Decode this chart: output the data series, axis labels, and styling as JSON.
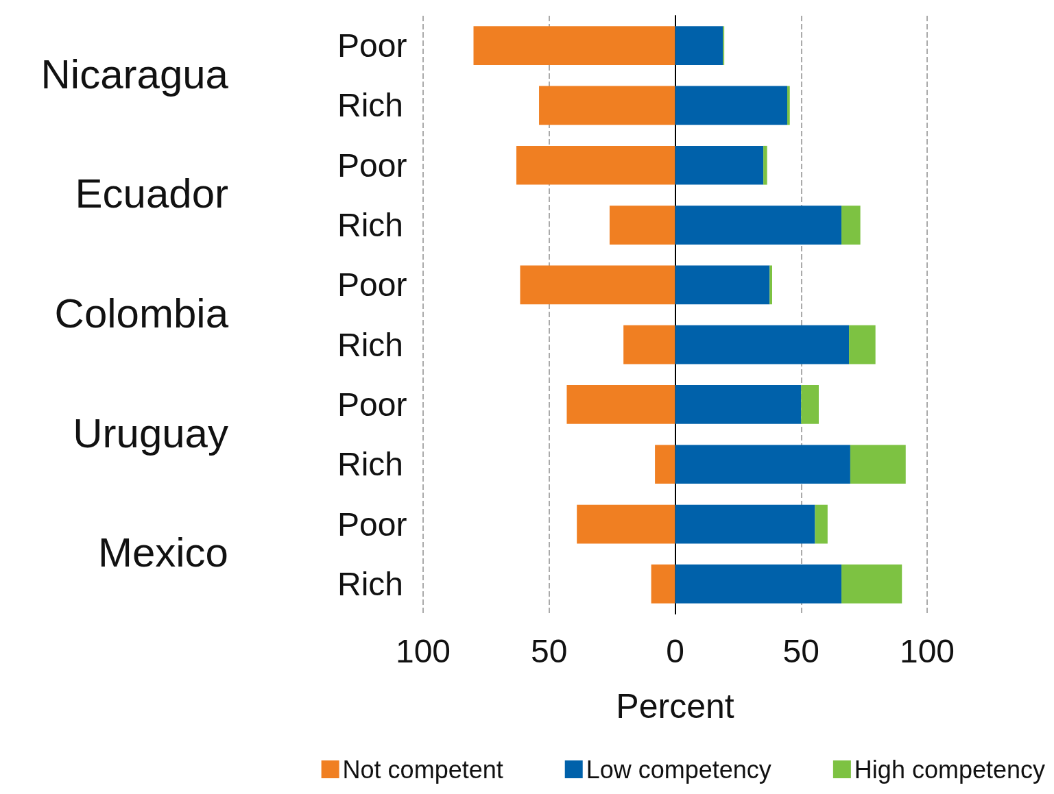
{
  "chart_data": {
    "type": "bar",
    "orientation": "horizontal",
    "stacked": true,
    "xlabel": "Percent",
    "categories": [
      "Poor",
      "Rich",
      "Poor",
      "Rich",
      "Poor",
      "Rich",
      "Poor",
      "Rich",
      "Poor",
      "Rich"
    ],
    "annotations": [
      "Nicaragua",
      "Ecuador",
      "Colombia",
      "Uruguay",
      "Mexico"
    ],
    "series": [
      {
        "name": "Not competent",
        "color": "#f07f22",
        "values": [
          -80,
          -54,
          -63,
          -26,
          -61.5,
          -20.5,
          -43,
          -8,
          -39,
          -9.5
        ]
      },
      {
        "name": "Low competency",
        "color": "#0061aa",
        "values": [
          19,
          44.5,
          35,
          66,
          37.5,
          69,
          50,
          69.5,
          55.5,
          66
        ]
      },
      {
        "name": "High competency",
        "color": "#7dc242",
        "values": [
          0.5,
          1,
          1.5,
          7.5,
          1,
          10.5,
          7,
          22,
          5,
          24
        ]
      }
    ],
    "xlim": [
      -100,
      100
    ],
    "xticks": [
      {
        "value": -100,
        "label": "100"
      },
      {
        "value": -50,
        "label": "50"
      },
      0,
      50,
      100
    ],
    "grid": "x",
    "legend": "bottom"
  }
}
